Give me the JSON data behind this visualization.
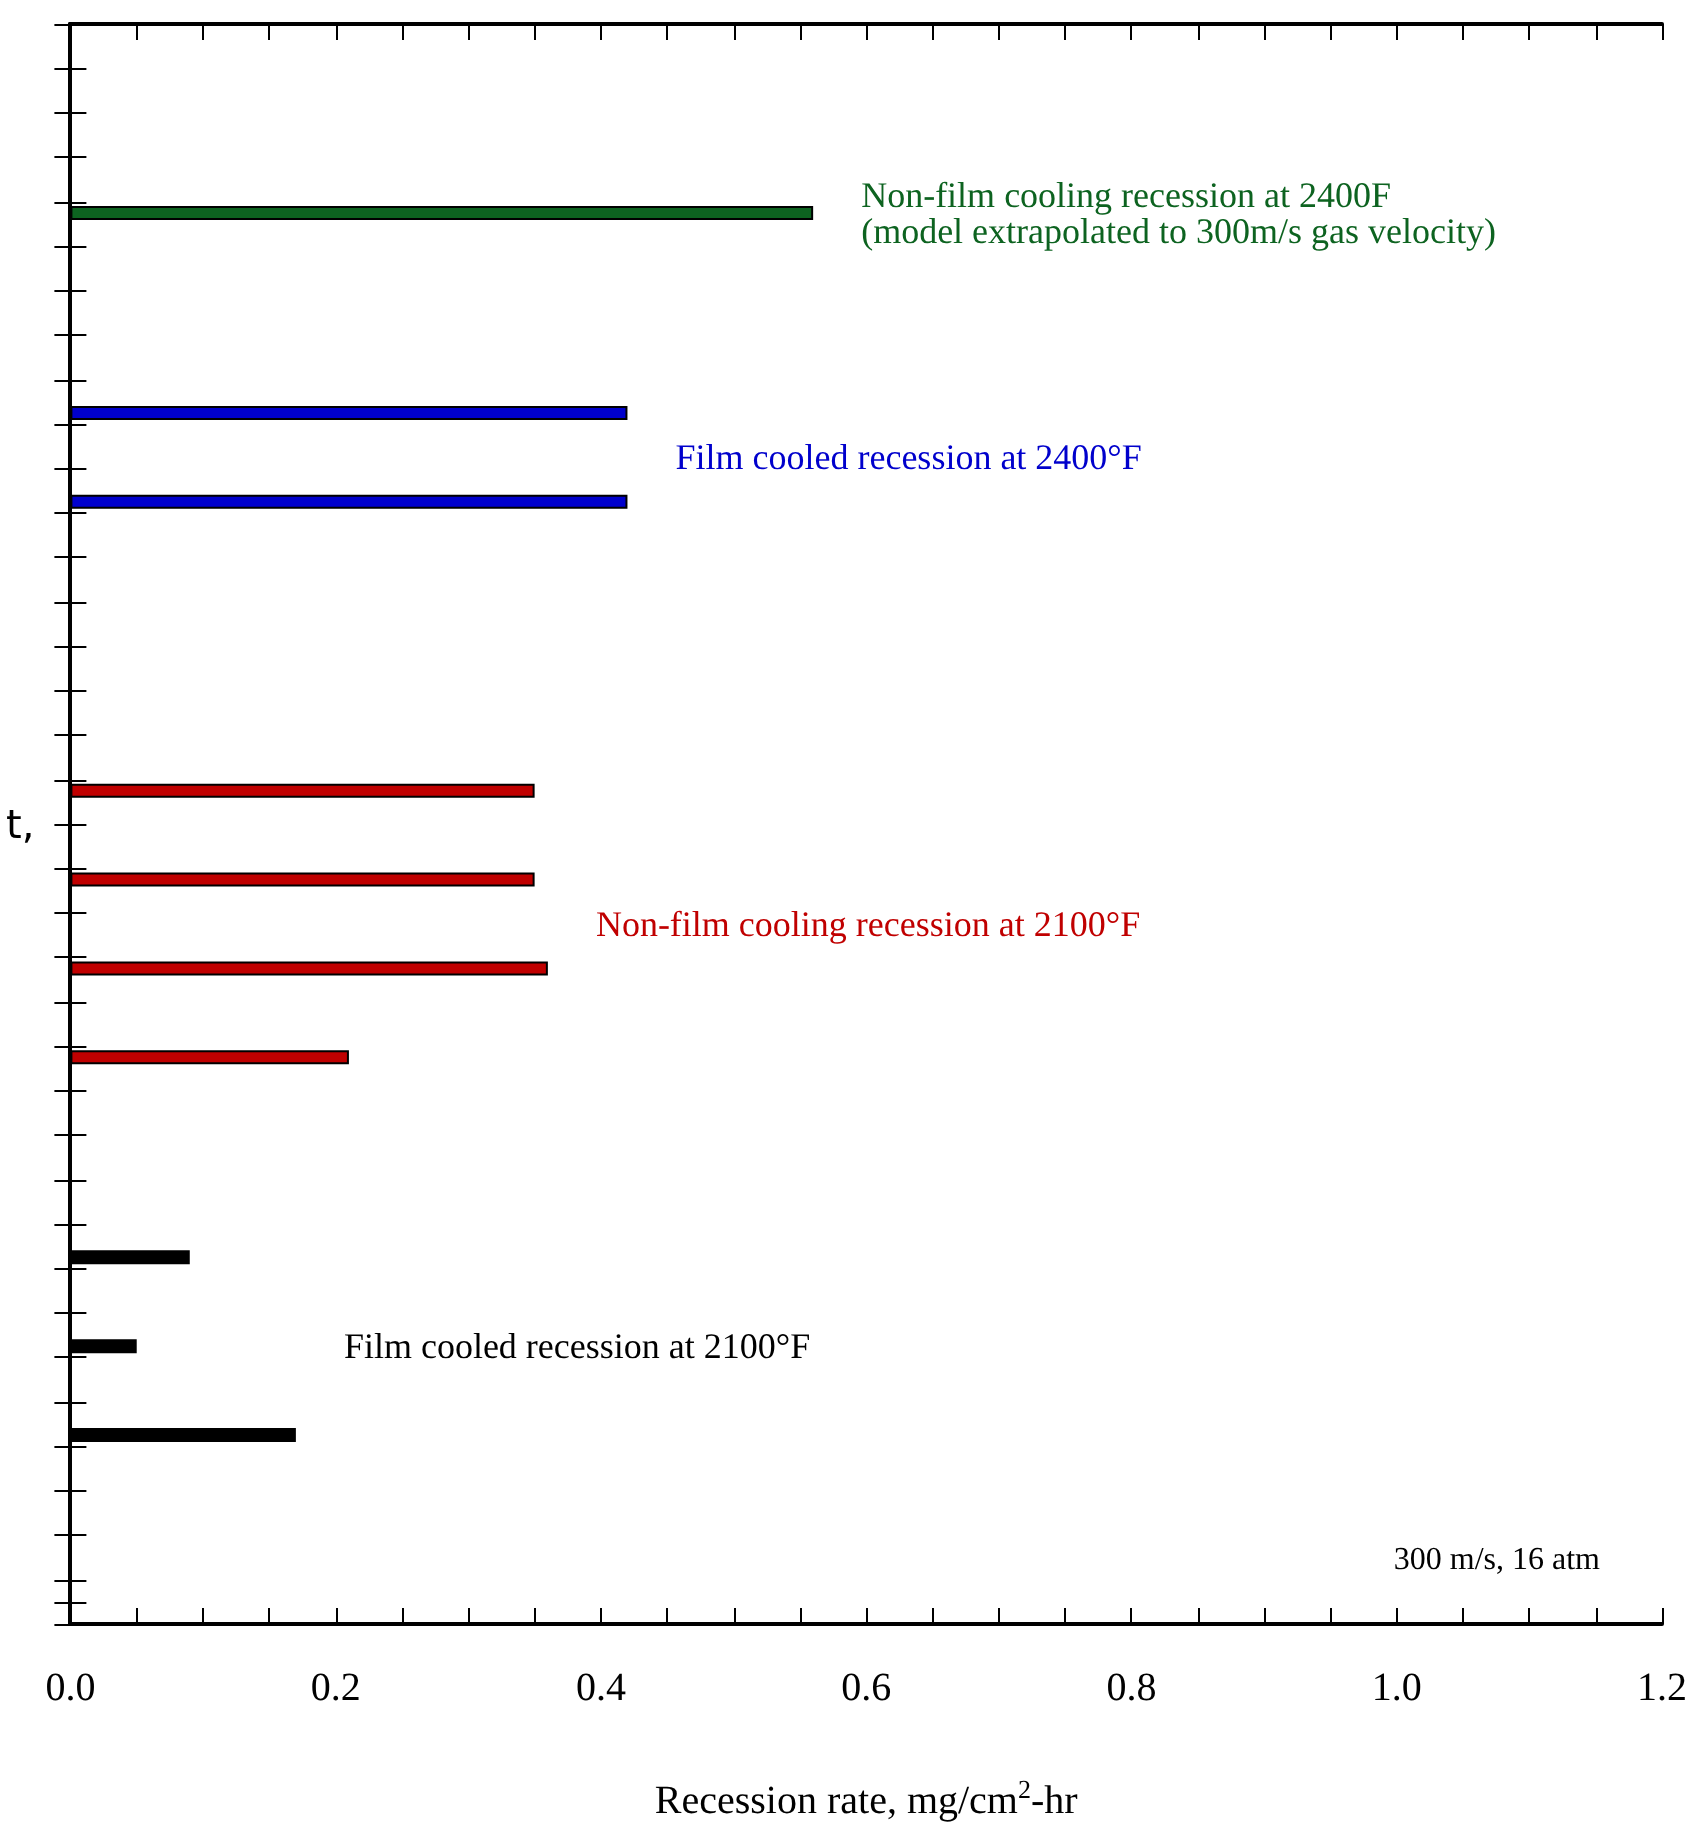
{
  "chart_data": {
    "type": "bar",
    "orientation": "horizontal",
    "categories": [
      null,
      null,
      null,
      null,
      null,
      null,
      null,
      null,
      null,
      null,
      null,
      null,
      null,
      null,
      null,
      null,
      null,
      null,
      null,
      null,
      null,
      null,
      null,
      null,
      null,
      null,
      null,
      null,
      null,
      null,
      null,
      null,
      null,
      null,
      null,
      null,
      null,
      null,
      null,
      null,
      null,
      null,
      null,
      null,
      null,
      null,
      null,
      null,
      null,
      null,
      null,
      null,
      null,
      null,
      null,
      null,
      null,
      null,
      null,
      null,
      null,
      null,
      null,
      null,
      null,
      null,
      null,
      null,
      null,
      null,
      null,
      null
    ],
    "series": [
      {
        "name": "Non-film cooling recession at 2400F\n(model extrapolated to 300m/s gas velocity)",
        "color": "#0d6320",
        "values": [
          null,
          null,
          null,
          null,
          null,
          null,
          null,
          null,
          0.56,
          null,
          null,
          null,
          null,
          null,
          null,
          null,
          null,
          null,
          null,
          null,
          null,
          null,
          null,
          null,
          null,
          null,
          null,
          null,
          null,
          null,
          null,
          null,
          null,
          null,
          null,
          null,
          null,
          null,
          null,
          null,
          null,
          null,
          null,
          null,
          null,
          null,
          null,
          null,
          null,
          null,
          null,
          null,
          null,
          null,
          null,
          null,
          null,
          null,
          null,
          null,
          null,
          null,
          null,
          null,
          null,
          null,
          null,
          null,
          null,
          null,
          null,
          null
        ]
      },
      {
        "name": "Film cooled recession at 2400°F",
        "color": "#0000cc",
        "values": [
          null,
          null,
          null,
          null,
          null,
          null,
          null,
          null,
          null,
          null,
          null,
          null,
          null,
          null,
          null,
          null,
          null,
          0.42,
          null,
          null,
          null,
          0.42,
          null,
          null,
          null,
          null,
          null,
          null,
          null,
          null,
          null,
          null,
          null,
          null,
          null,
          null,
          null,
          null,
          null,
          null,
          null,
          null,
          null,
          null,
          null,
          null,
          null,
          null,
          null,
          null,
          null,
          null,
          null,
          null,
          null,
          null,
          null,
          null,
          null,
          null,
          null,
          null,
          null,
          null,
          null,
          null,
          null,
          null,
          null,
          null,
          null,
          null
        ]
      },
      {
        "name": "Non-film cooling recession at 2100°F",
        "color": "#c00000",
        "values": [
          null,
          null,
          null,
          null,
          null,
          null,
          null,
          null,
          null,
          null,
          null,
          null,
          null,
          null,
          null,
          null,
          null,
          null,
          null,
          null,
          null,
          null,
          null,
          null,
          null,
          null,
          null,
          null,
          null,
          null,
          null,
          null,
          null,
          null,
          0.35,
          null,
          null,
          null,
          0.35,
          null,
          null,
          null,
          0.36,
          null,
          null,
          null,
          0.21,
          null,
          null,
          null,
          null,
          null,
          null,
          null,
          null,
          null,
          null,
          null,
          null,
          null,
          null,
          null,
          null,
          null,
          null,
          null,
          null,
          null,
          null,
          null,
          null,
          null
        ]
      },
      {
        "name": "Film cooled recession at 2100°F",
        "color": "#000000",
        "values": [
          null,
          null,
          null,
          null,
          null,
          null,
          null,
          null,
          null,
          null,
          null,
          null,
          null,
          null,
          null,
          null,
          null,
          null,
          null,
          null,
          null,
          null,
          null,
          null,
          null,
          null,
          null,
          null,
          null,
          null,
          null,
          null,
          null,
          null,
          null,
          null,
          null,
          null,
          null,
          null,
          null,
          null,
          null,
          null,
          null,
          null,
          null,
          null,
          null,
          null,
          null,
          null,
          null,
          null,
          null,
          0.09,
          null,
          null,
          null,
          0.05,
          null,
          null,
          null,
          0.17,
          null,
          null,
          null,
          null,
          null,
          null,
          null,
          null
        ]
      }
    ],
    "xlim": [
      0,
      1.2
    ],
    "xticks": [
      {
        "value": 0,
        "label": "0.0"
      },
      {
        "value": 0.05,
        "label": null
      },
      {
        "value": 0.1,
        "label": null
      },
      {
        "value": 0.15,
        "label": null
      },
      {
        "value": 0.2,
        "label": "0.2"
      },
      {
        "value": 0.25,
        "label": null
      },
      {
        "value": 0.3,
        "label": null
      },
      {
        "value": 0.35,
        "label": null
      },
      {
        "value": 0.4,
        "label": "0.4"
      },
      {
        "value": 0.45,
        "label": null
      },
      {
        "value": 0.5,
        "label": null
      },
      {
        "value": 0.55,
        "label": null
      },
      {
        "value": 0.6,
        "label": "0.6"
      },
      {
        "value": 0.65,
        "label": null
      },
      {
        "value": 0.7,
        "label": null
      },
      {
        "value": 0.75,
        "label": null
      },
      {
        "value": 0.8,
        "label": "0.8"
      },
      {
        "value": 0.85,
        "label": null
      },
      {
        "value": 0.9,
        "label": null
      },
      {
        "value": 0.95,
        "label": null
      },
      {
        "value": 1.0,
        "label": "1.0"
      },
      {
        "value": 1.05,
        "label": null
      },
      {
        "value": 1.1,
        "label": null
      },
      {
        "value": 1.15,
        "label": null
      },
      {
        "value": 1.2,
        "label": "1.2"
      }
    ],
    "xlabel": "Recession rate, mg/cm$^{2}$-hr",
    "ylabel": "t,",
    "annotations": [
      "300 m/s, 16 atm"
    ]
  }
}
